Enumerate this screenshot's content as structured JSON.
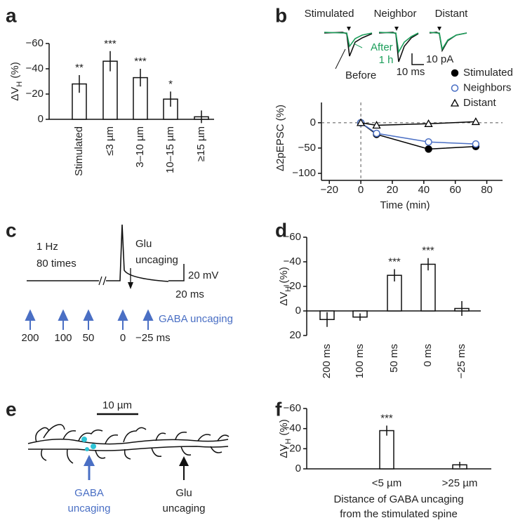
{
  "chart_data": [
    {
      "type": "bar",
      "panel": "a",
      "ylabel": {
        "main": "ΔV",
        "sub": "H",
        "unit": " (%)"
      },
      "categories": [
        "Stimulated",
        "≤3 µm",
        "3–10 µm",
        "10–15 µm",
        "≥15 µm"
      ],
      "values": [
        -28,
        -46,
        -33,
        -16,
        -2
      ],
      "errors": [
        7,
        8,
        7,
        6,
        5
      ],
      "stars": [
        "**",
        "***",
        "***",
        "*",
        null
      ],
      "color": "#ffffff",
      "ylim": [
        0,
        -60
      ],
      "yticks": [
        {
          "value": -60,
          "label": "−60"
        },
        {
          "value": -40,
          "label": "−40"
        },
        {
          "value": -20,
          "label": "−20"
        },
        0
      ]
    },
    {
      "type": "line",
      "panel": "b",
      "inset": {
        "labels": [
          "Stimulated",
          "Neighbor",
          "Distant"
        ],
        "after": "After",
        "after_time": "1 h",
        "before": "Before",
        "scale_y": "10 pA",
        "scale_x": "10 ms"
      },
      "xlabel": "Time (min)",
      "ylabel": "Δ2pEPSC (%)",
      "x": [
        0,
        10,
        43,
        73
      ],
      "series": [
        {
          "name": "Stimulated",
          "color": "#000000",
          "marker": "filled-circle",
          "values": [
            0,
            -23,
            -52,
            -47
          ]
        },
        {
          "name": "Neighbors",
          "color": "#4a6fc4",
          "marker": "open-circle",
          "values": [
            0,
            -21,
            -38,
            -42
          ]
        },
        {
          "name": "Distant",
          "color": "#000000",
          "marker": "triangle",
          "values": [
            0,
            -5,
            -2,
            2
          ]
        }
      ],
      "xlim": [
        -25,
        90
      ],
      "xticks": [
        {
          "value": -20,
          "label": "−20"
        },
        0,
        20,
        40,
        60,
        80
      ],
      "ylim": [
        -100,
        40
      ],
      "yticks": [
        {
          "value": -100,
          "label": "−100"
        },
        {
          "value": -50,
          "label": "−50"
        },
        0
      ],
      "zero_lines": "dashed"
    },
    {
      "type": "trace",
      "panel": "c",
      "notes": [
        "1 Hz",
        "80 times"
      ],
      "glu": [
        "Glu",
        "uncaging"
      ],
      "scale_y": "20 mV",
      "scale_x": "20 ms",
      "gaba": "GABA uncaging",
      "timings": [
        "200",
        "100",
        "50",
        "0",
        "−25 ms"
      ]
    },
    {
      "type": "bar",
      "panel": "d",
      "ylabel": {
        "main": "ΔV",
        "sub": "H",
        "unit": " (%)"
      },
      "categories": [
        "200 ms",
        "100 ms",
        "50 ms",
        "0 ms",
        "−25 ms"
      ],
      "values": [
        7,
        5,
        -29,
        -38,
        -2
      ],
      "errors": [
        6,
        3,
        5,
        5,
        6
      ],
      "stars": [
        null,
        null,
        "***",
        "***",
        null
      ],
      "color": "#ffffff",
      "ylim": [
        20,
        -60
      ],
      "yticks": [
        {
          "value": -60,
          "label": "−60"
        },
        {
          "value": -40,
          "label": "−40"
        },
        {
          "value": -20,
          "label": "−20"
        },
        0,
        20
      ]
    },
    {
      "type": "diagram",
      "panel": "e",
      "scale": "10 µm",
      "gaba": [
        "GABA",
        "uncaging"
      ],
      "glu": [
        "Glu",
        "uncaging"
      ]
    },
    {
      "type": "bar",
      "panel": "f",
      "ylabel": {
        "main": "ΔV",
        "sub": "H",
        "unit": " (%)"
      },
      "categories": [
        "<5 µm",
        ">25 µm"
      ],
      "values": [
        -38,
        -4
      ],
      "errors": [
        5,
        3
      ],
      "stars": [
        "***",
        null
      ],
      "color": "#ffffff",
      "xlabel": [
        "Distance of GABA uncaging",
        "from the stimulated spine"
      ],
      "ylim": [
        0,
        -60
      ],
      "yticks": [
        {
          "value": -60,
          "label": "−60"
        },
        {
          "value": -40,
          "label": "−40"
        },
        {
          "value": -20,
          "label": "−20"
        },
        0
      ]
    }
  ]
}
